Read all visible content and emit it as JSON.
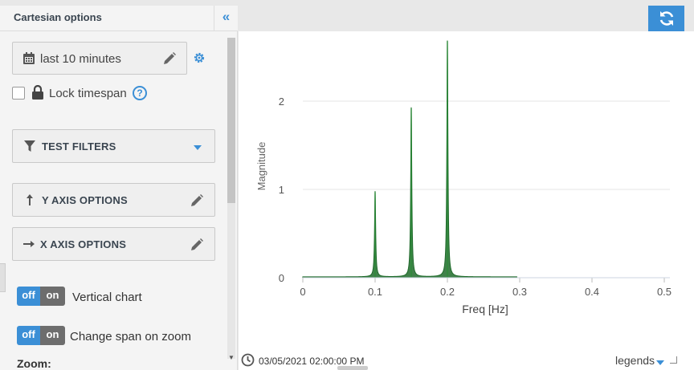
{
  "panel": {
    "title": "Cartesian options",
    "timespan": "last 10 minutes",
    "lock_label": "Lock timespan",
    "help_glyph": "?",
    "test_filters": "TEST FILTERS",
    "y_axis": "Y AXIS OPTIONS",
    "x_axis": "X AXIS OPTIONS",
    "toggle_off": "off",
    "toggle_on": "on",
    "vertical_chart": "Vertical chart",
    "change_span": "Change span on zoom",
    "zoom": "Zoom:"
  },
  "footer": {
    "timestamp": "03/05/2021 02:00:00 PM",
    "legends": "legends"
  },
  "colors": {
    "accent": "#3b8fd6",
    "series": "#1e6b2a"
  },
  "chart_data": {
    "type": "line",
    "title": "",
    "xlabel": "Freq [Hz]",
    "ylabel": "Magnitude",
    "xlim": [
      0,
      0.5
    ],
    "ylim": [
      0,
      2.7
    ],
    "xticks": [
      "0",
      "0.1",
      "0.2",
      "0.3",
      "0.4",
      "0.5"
    ],
    "yticks": [
      "0",
      "1",
      "2"
    ],
    "series": [
      {
        "peaks": [
          {
            "x": 0.1,
            "y": 0.97
          },
          {
            "x": 0.15,
            "y": 1.92
          },
          {
            "x": 0.2,
            "y": 2.68
          }
        ],
        "x_end": 0.296,
        "baseline": 0.01
      }
    ],
    "grid": true
  }
}
